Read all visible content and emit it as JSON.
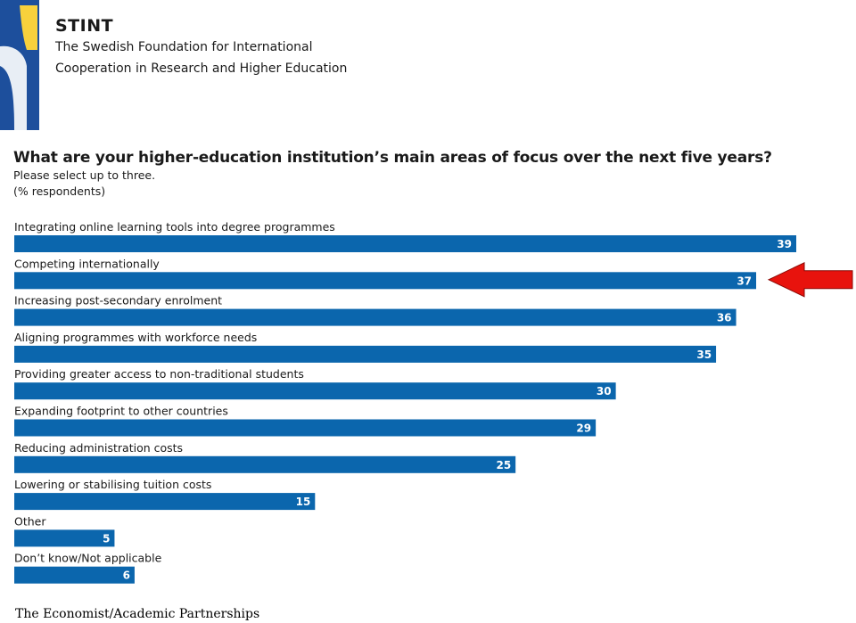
{
  "header": {
    "org_name": "STINT",
    "org_line1": "The Swedish Foundation for International",
    "org_line2": "Cooperation in Research and Higher Education"
  },
  "colors": {
    "bar": "#0b66ad",
    "logo_blue": "#1d4f9c",
    "logo_yellow": "#f8d13c",
    "arrow": "#e8130d"
  },
  "chart_data": {
    "type": "bar",
    "orientation": "horizontal",
    "title": "What are your higher-education institution’s main areas of focus over the next five years?",
    "subtitle": "Please select up to three.",
    "unit_note": "(% respondents)",
    "categories": [
      "Integrating online learning tools into degree programmes",
      "Competing internationally",
      "Increasing post-secondary enrolment",
      "Aligning programmes with workforce needs",
      "Providing greater access to non-traditional students",
      "Expanding footprint to other countries",
      "Reducing administration costs",
      "Lowering or stabilising tuition costs",
      "Other",
      "Don’t know/Not applicable"
    ],
    "values": [
      39,
      37,
      36,
      35,
      30,
      29,
      25,
      15,
      5,
      6
    ],
    "highlighted_category": "Competing internationally",
    "grid": false,
    "legend": "none"
  },
  "source": "The Economist/Academic Partnerships"
}
